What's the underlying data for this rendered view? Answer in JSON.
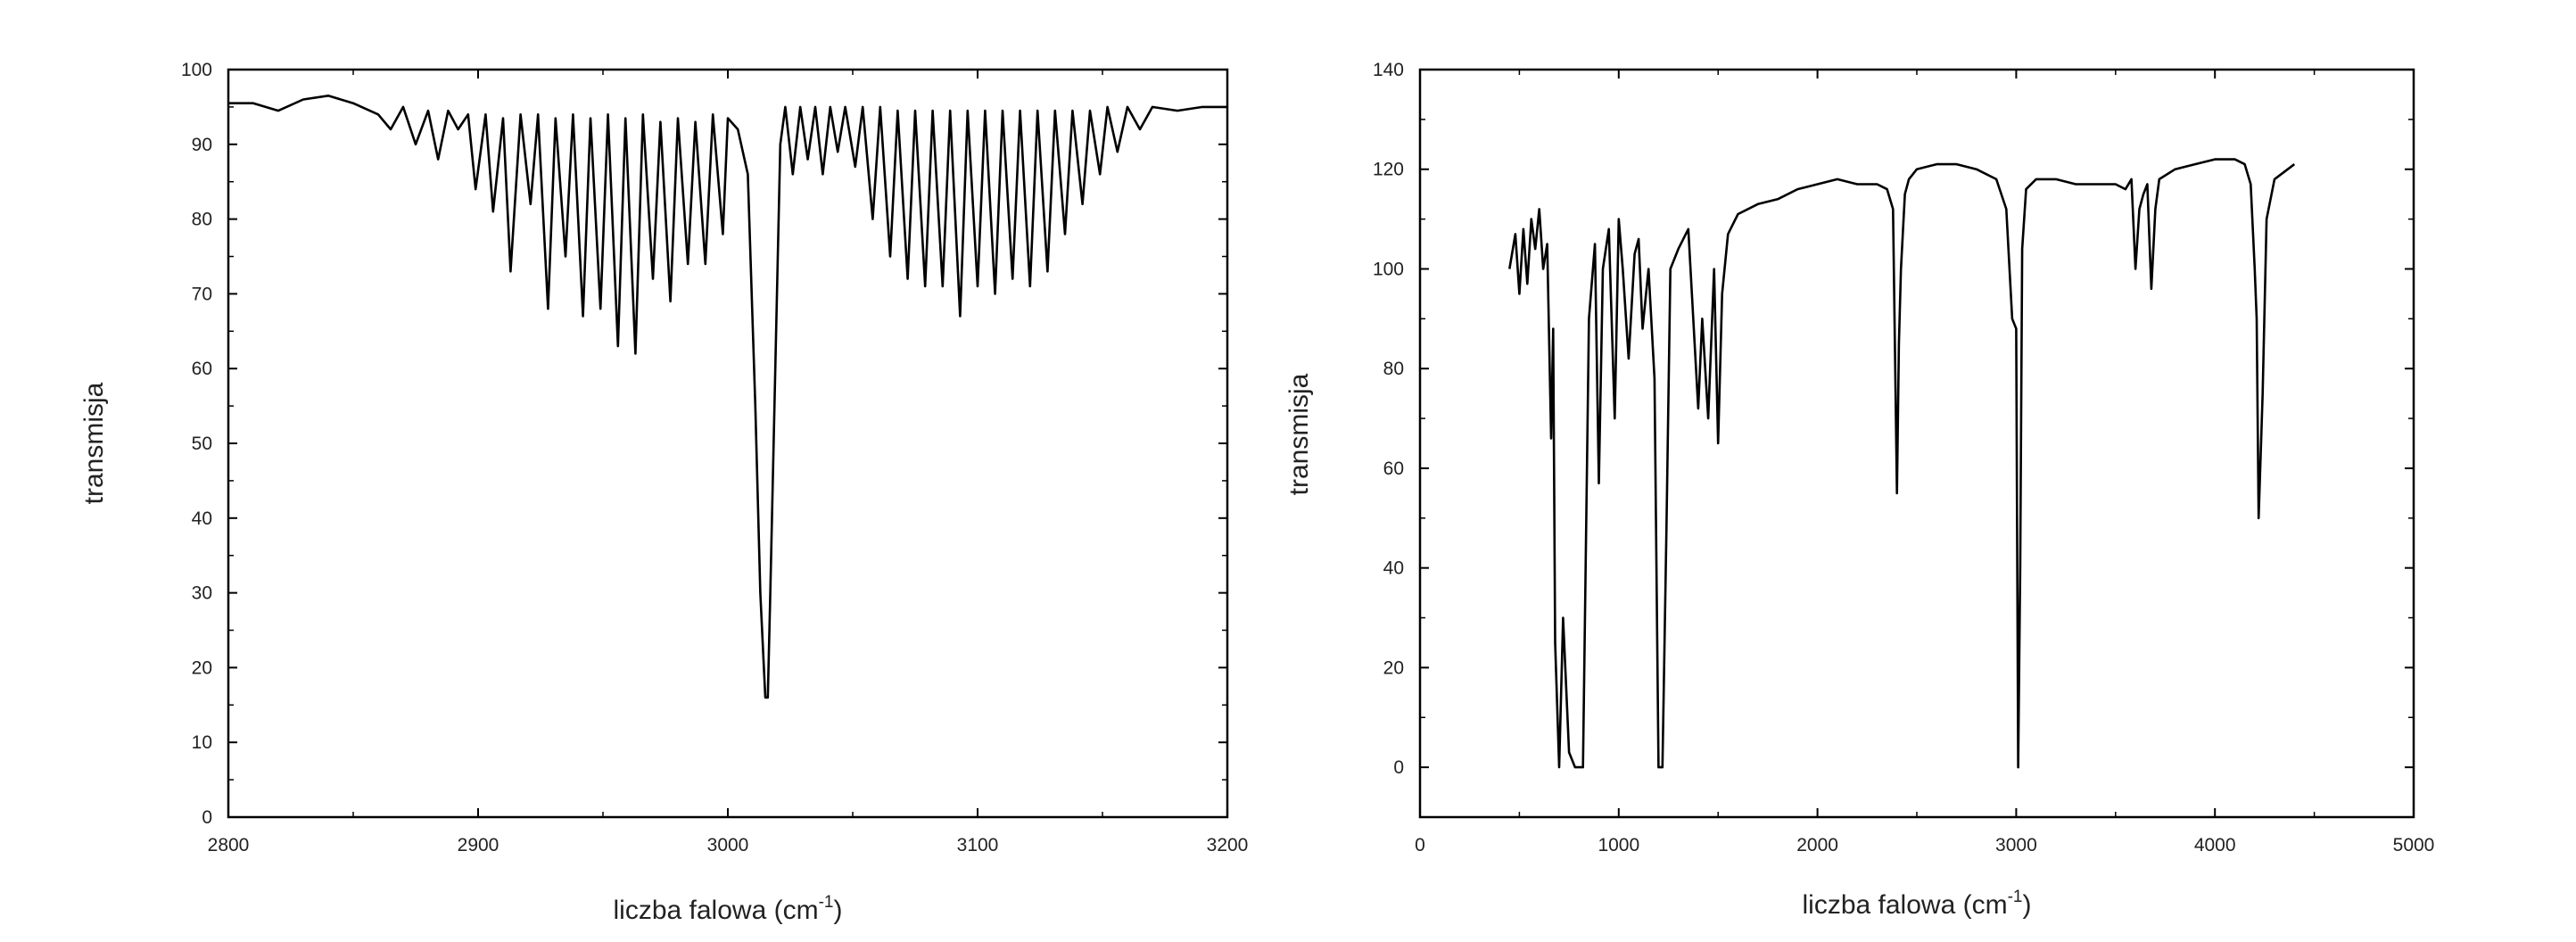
{
  "chart_data": [
    {
      "type": "line",
      "title": "",
      "xlabel": "liczba falowa (cm",
      "xlabel_sup": "-1",
      "xlabel_end": ")",
      "ylabel": "transmisja",
      "xlim": [
        2800,
        3200
      ],
      "ylim": [
        0,
        100
      ],
      "xticks": [
        2800,
        2900,
        3000,
        3100,
        3200
      ],
      "yticks": [
        0,
        10,
        20,
        30,
        40,
        50,
        60,
        70,
        80,
        90,
        100
      ],
      "grid": false,
      "line_color": "#000000",
      "series": [
        {
          "x": [
            2800,
            2810,
            2820,
            2830,
            2840,
            2850,
            2860,
            2865,
            2870,
            2875,
            2880,
            2884,
            2888,
            2892,
            2896,
            2899,
            2903,
            2906,
            2910,
            2913,
            2917,
            2921,
            2924,
            2928,
            2931,
            2935,
            2938,
            2942,
            2945,
            2949,
            2952,
            2956,
            2959,
            2963,
            2966,
            2970,
            2973,
            2977,
            2980,
            2984,
            2987,
            2991,
            2994,
            2998,
            3000,
            3004,
            3008,
            3011,
            3013,
            3015,
            3016,
            3017,
            3019,
            3021,
            3023,
            3026,
            3029,
            3032,
            3035,
            3038,
            3041,
            3044,
            3047,
            3051,
            3054,
            3058,
            3061,
            3065,
            3068,
            3072,
            3075,
            3079,
            3082,
            3086,
            3089,
            3093,
            3096,
            3100,
            3103,
            3107,
            3110,
            3114,
            3117,
            3121,
            3124,
            3128,
            3131,
            3135,
            3138,
            3142,
            3145,
            3149,
            3152,
            3156,
            3160,
            3165,
            3170,
            3180,
            3190,
            3200
          ],
          "y": [
            95.5,
            95.5,
            94.5,
            96,
            96.5,
            95.5,
            94,
            92,
            95,
            90,
            94.5,
            88,
            94.5,
            92,
            94,
            84,
            94,
            81,
            93.5,
            73,
            94,
            82,
            94,
            68,
            93.5,
            75,
            94,
            67,
            93.5,
            68,
            94,
            63,
            93.5,
            62,
            94,
            72,
            93,
            69,
            93.5,
            74,
            93,
            74,
            94,
            78,
            93.5,
            92,
            86,
            55,
            30,
            16,
            16,
            30,
            60,
            90,
            95,
            86,
            95,
            88,
            95,
            86,
            95,
            89,
            95,
            87,
            95,
            80,
            95,
            75,
            94.5,
            72,
            94.5,
            71,
            94.5,
            71,
            94.5,
            67,
            94.5,
            71,
            94.5,
            70,
            94.5,
            72,
            94.5,
            71,
            94.5,
            73,
            94.5,
            78,
            94.5,
            82,
            94.5,
            86,
            95,
            89,
            95,
            92,
            95,
            94.5,
            95,
            95
          ]
        }
      ]
    },
    {
      "type": "line",
      "title": "",
      "xlabel": "liczba falowa (cm",
      "xlabel_sup": "-1",
      "xlabel_end": ")",
      "ylabel": "transmisja",
      "xlim": [
        0,
        5000
      ],
      "ylim": [
        -10,
        140
      ],
      "xticks": [
        0,
        1000,
        2000,
        3000,
        4000,
        5000
      ],
      "yticks": [
        0,
        20,
        40,
        60,
        80,
        100,
        120,
        140
      ],
      "grid": false,
      "line_color": "#000000",
      "series": [
        {
          "x": [
            450,
            480,
            500,
            520,
            540,
            560,
            580,
            600,
            620,
            640,
            660,
            670,
            680,
            700,
            720,
            750,
            780,
            800,
            820,
            850,
            880,
            900,
            920,
            950,
            980,
            1000,
            1020,
            1050,
            1080,
            1100,
            1120,
            1150,
            1180,
            1200,
            1220,
            1240,
            1260,
            1300,
            1350,
            1400,
            1420,
            1450,
            1480,
            1500,
            1520,
            1550,
            1600,
            1700,
            1800,
            1900,
            2000,
            2100,
            2200,
            2300,
            2350,
            2380,
            2400,
            2410,
            2420,
            2440,
            2460,
            2500,
            2600,
            2700,
            2800,
            2900,
            2950,
            2980,
            3000,
            3010,
            3020,
            3030,
            3050,
            3100,
            3200,
            3300,
            3400,
            3500,
            3550,
            3580,
            3600,
            3620,
            3640,
            3660,
            3680,
            3700,
            3720,
            3800,
            3900,
            4000,
            4100,
            4150,
            4180,
            4200,
            4210,
            4220,
            4240,
            4260,
            4300,
            4400
          ],
          "y": [
            100,
            107,
            95,
            108,
            97,
            110,
            104,
            112,
            100,
            105,
            66,
            88,
            25,
            0,
            30,
            3,
            0,
            0,
            0,
            90,
            105,
            57,
            100,
            108,
            70,
            110,
            100,
            82,
            103,
            106,
            88,
            100,
            78,
            0,
            0,
            48,
            100,
            104,
            108,
            72,
            90,
            70,
            100,
            65,
            95,
            107,
            111,
            113,
            114,
            116,
            117,
            118,
            117,
            117,
            116,
            112,
            55,
            85,
            100,
            115,
            118,
            120,
            121,
            121,
            120,
            118,
            112,
            90,
            88,
            0,
            40,
            104,
            116,
            118,
            118,
            117,
            117,
            117,
            116,
            118,
            100,
            112,
            115,
            117,
            96,
            112,
            118,
            120,
            121,
            122,
            122,
            121,
            117,
            100,
            90,
            50,
            75,
            110,
            118,
            121
          ]
        }
      ]
    }
  ]
}
